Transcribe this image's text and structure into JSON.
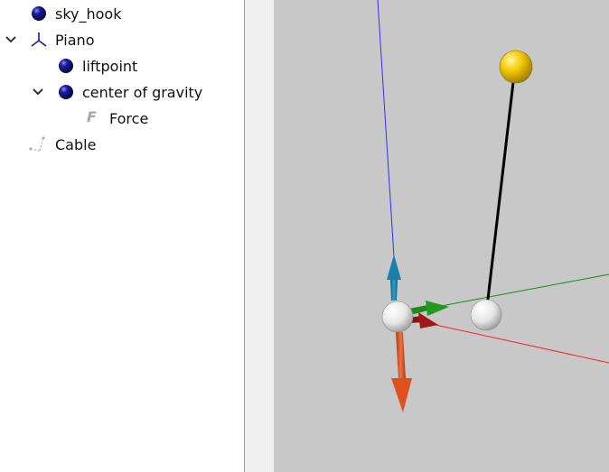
{
  "tree": {
    "items": [
      {
        "label": "sky_hook",
        "icon": "blue-point-icon"
      },
      {
        "label": "Piano",
        "icon": "axes-frame-icon",
        "expanded": true
      },
      {
        "label": "liftpoint",
        "icon": "blue-point-icon"
      },
      {
        "label": "center of gravity",
        "icon": "blue-point-icon",
        "expanded": true
      },
      {
        "label": "Force",
        "icon": "force-f-icon"
      },
      {
        "label": "Cable",
        "icon": "cable-icon"
      }
    ]
  },
  "colors": {
    "viewport_bg": "#c8c8c8",
    "point_blue": "#14148c",
    "sky_hook_ball": "#f2c800",
    "axis_blue": "#3030ff",
    "axis_red": "#ff2020",
    "axis_green": "#1a8a1a",
    "arrow_up": "#1a7fa8",
    "arrow_down": "#e0501c",
    "arrow_x": "#a01818",
    "arrow_y": "#1a8a1a"
  }
}
